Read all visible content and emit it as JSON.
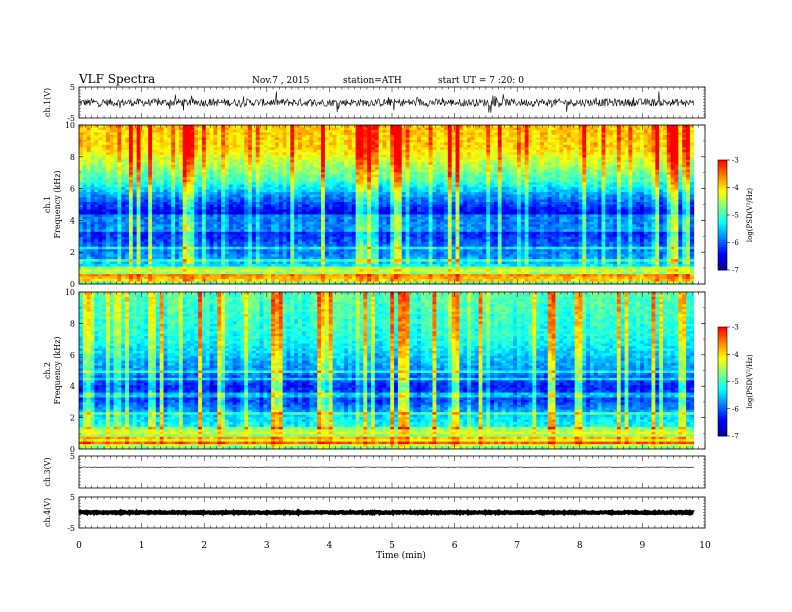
{
  "header": {
    "title": "VLF Spectra",
    "date": "Nov.7 , 2015",
    "station": "station=ATH",
    "start": "start UT = 7 :20: 0"
  },
  "colors": {
    "background": "#ffffff",
    "axis": "#000000",
    "colormap": [
      "#00008f",
      "#0000ff",
      "#0080ff",
      "#00ffff",
      "#80ff80",
      "#ffff00",
      "#ff8000",
      "#ff0000",
      "#ffffff"
    ]
  },
  "chart_data": [
    {
      "id": "ch1-waveform",
      "type": "line",
      "ylabel": "ch.1(V)",
      "ylim": [
        -5,
        5
      ],
      "yticks": [
        {
          "value": 5,
          "label": "5"
        },
        {
          "value": -5,
          "label": "-5"
        }
      ],
      "baseline": 0,
      "noise_amplitude": 2.5
    },
    {
      "id": "ch1-spectrogram",
      "type": "heatmap",
      "ylabel_lines": [
        "ch.1",
        "Frequency (kHz)"
      ],
      "ylim": [
        0,
        10
      ],
      "yticks": [
        {
          "value": 0,
          "label": "0"
        },
        {
          "value": 2,
          "label": "2"
        },
        {
          "value": 4,
          "label": "4"
        },
        {
          "value": 6,
          "label": "6"
        },
        {
          "value": 8,
          "label": "8"
        },
        {
          "value": 10,
          "label": "10"
        }
      ],
      "colorbar": {
        "label": "log(PSD(V²/Hz)",
        "range": [
          -7,
          -3
        ],
        "ticks": [
          {
            "value": -3,
            "label": "-3"
          },
          {
            "value": -4,
            "label": "-4"
          },
          {
            "value": -5,
            "label": "-5"
          },
          {
            "value": -6,
            "label": "-6"
          },
          {
            "value": -7,
            "label": "-7"
          }
        ]
      },
      "level_profile": [
        {
          "khz": 0.0,
          "level": -5.2
        },
        {
          "khz": 0.3,
          "level": -3.6
        },
        {
          "khz": 0.6,
          "level": -4.4
        },
        {
          "khz": 1.0,
          "level": -5.2
        },
        {
          "khz": 1.5,
          "level": -5.7
        },
        {
          "khz": 2.5,
          "level": -6.0
        },
        {
          "khz": 3.5,
          "level": -6.4
        },
        {
          "khz": 4.5,
          "level": -6.5
        },
        {
          "khz": 5.5,
          "level": -5.8
        },
        {
          "khz": 6.5,
          "level": -5.0
        },
        {
          "khz": 7.5,
          "level": -4.5
        },
        {
          "khz": 8.5,
          "level": -4.0
        },
        {
          "khz": 10.0,
          "level": -3.9
        }
      ]
    },
    {
      "id": "ch2-spectrogram",
      "type": "heatmap",
      "ylabel_lines": [
        "ch.2",
        "Frequency (kHz)"
      ],
      "ylim": [
        0,
        10
      ],
      "yticks": [
        {
          "value": 0,
          "label": "0"
        },
        {
          "value": 2,
          "label": "2"
        },
        {
          "value": 4,
          "label": "4"
        },
        {
          "value": 6,
          "label": "6"
        },
        {
          "value": 8,
          "label": "8"
        },
        {
          "value": 10,
          "label": "10"
        }
      ],
      "colorbar": {
        "label": "log(PSD(V²/Hz)",
        "range": [
          -7,
          -3
        ],
        "ticks": [
          {
            "value": -3,
            "label": "-3"
          },
          {
            "value": -4,
            "label": "-4"
          },
          {
            "value": -5,
            "label": "-5"
          },
          {
            "value": -6,
            "label": "-6"
          },
          {
            "value": -7,
            "label": "-7"
          }
        ]
      },
      "level_profile": [
        {
          "khz": 0.0,
          "level": -5.0
        },
        {
          "khz": 0.4,
          "level": -4.0
        },
        {
          "khz": 0.8,
          "level": -4.6
        },
        {
          "khz": 1.2,
          "level": -5.2
        },
        {
          "khz": 2.0,
          "level": -5.4
        },
        {
          "khz": 3.0,
          "level": -6.1
        },
        {
          "khz": 4.0,
          "level": -6.3
        },
        {
          "khz": 5.0,
          "level": -5.8
        },
        {
          "khz": 6.0,
          "level": -5.5
        },
        {
          "khz": 7.0,
          "level": -5.2
        },
        {
          "khz": 8.0,
          "level": -5.1
        },
        {
          "khz": 9.0,
          "level": -5.0
        },
        {
          "khz": 10.0,
          "level": -4.9
        }
      ]
    },
    {
      "id": "ch3-waveform",
      "type": "line",
      "ylabel": "ch.3(V)",
      "ylim": [
        -5,
        5
      ],
      "yticks": [
        {
          "value": 5,
          "label": "5"
        }
      ],
      "baseline": 1.5,
      "noise_amplitude": 0.15
    },
    {
      "id": "ch4-waveform",
      "type": "line",
      "ylabel": "ch.4(V)",
      "ylim": [
        -5,
        5
      ],
      "yticks": [
        {
          "value": 5,
          "label": "5"
        },
        {
          "value": -5,
          "label": "-5"
        }
      ],
      "baseline": 0,
      "noise_amplitude": 0.35
    }
  ],
  "x_axis": {
    "label": "Time (min)",
    "xlim": [
      0,
      10
    ],
    "data_end": 9.82,
    "ticks": [
      {
        "value": 0,
        "label": "0"
      },
      {
        "value": 1,
        "label": "1"
      },
      {
        "value": 2,
        "label": "2"
      },
      {
        "value": 3,
        "label": "3"
      },
      {
        "value": 4,
        "label": "4"
      },
      {
        "value": 5,
        "label": "5"
      },
      {
        "value": 6,
        "label": "6"
      },
      {
        "value": 7,
        "label": "7"
      },
      {
        "value": 8,
        "label": "8"
      },
      {
        "value": 9,
        "label": "9"
      },
      {
        "value": 10,
        "label": "10"
      }
    ]
  }
}
